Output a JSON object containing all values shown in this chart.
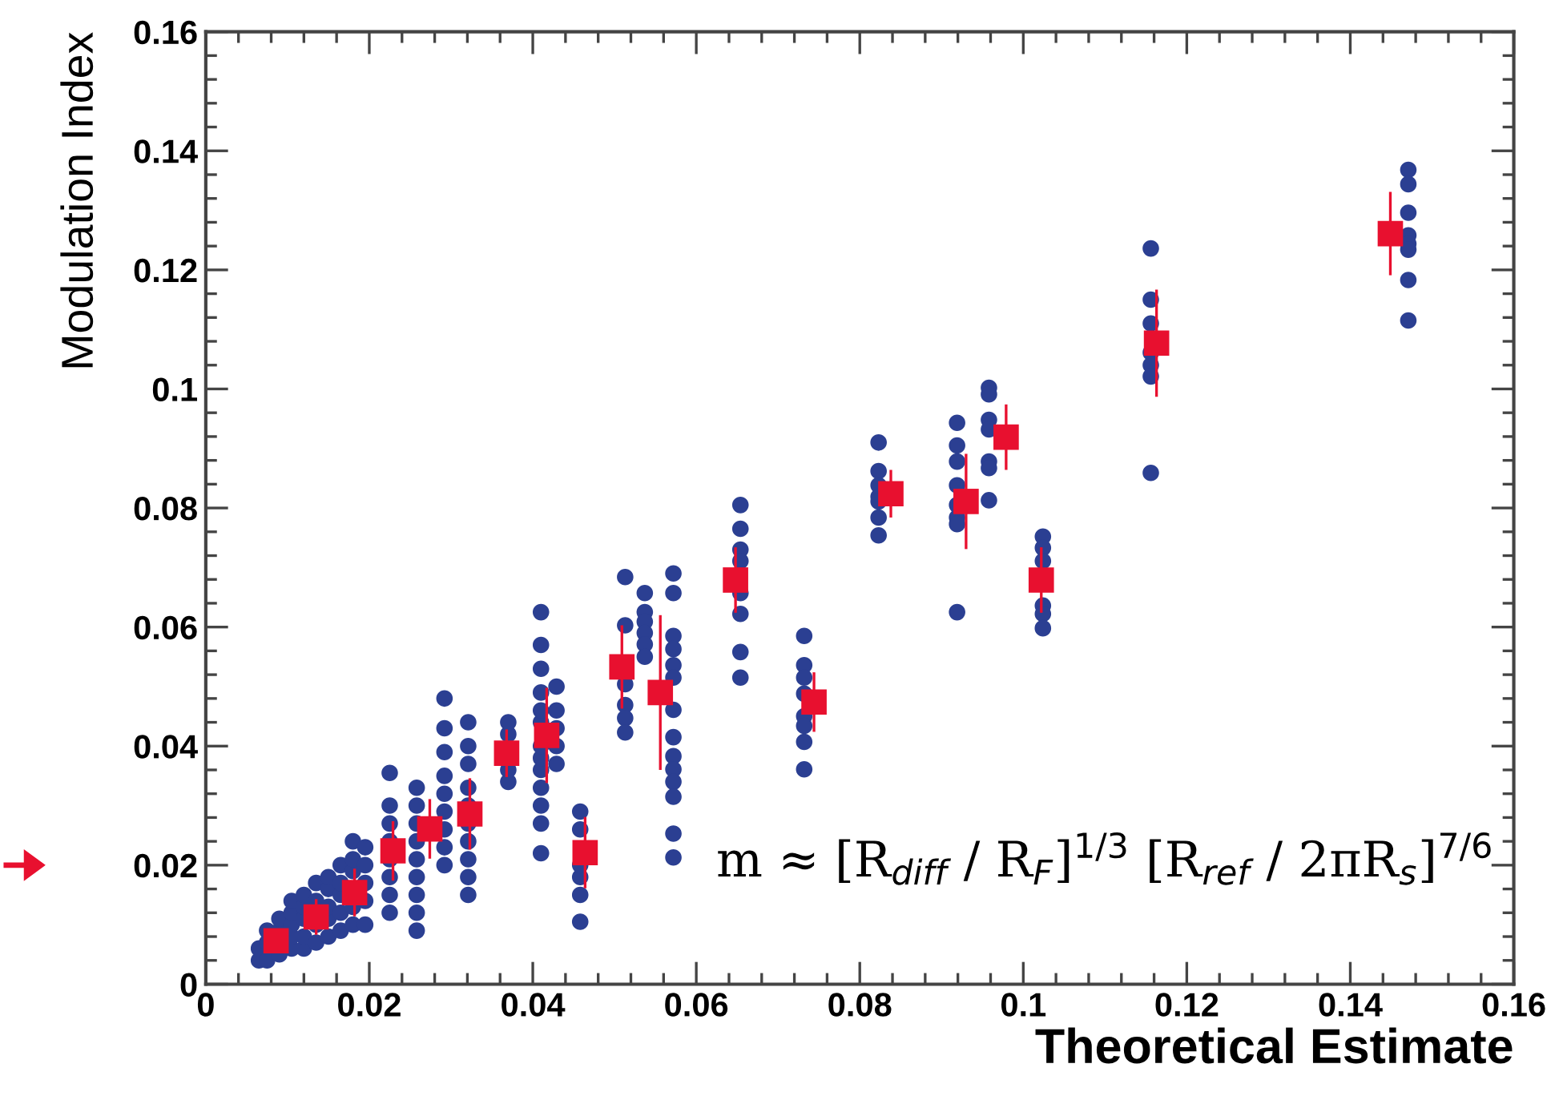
{
  "chart_data": {
    "type": "scatter",
    "xlabel": "Theoretical Estimate",
    "ylabel": "Modulation Index",
    "annotations": [
      "m ≈ [R$_{diff}$ / R$_{F}$]$^{1/3}$ [R$_{ref}$ / 2πR$_{s}$]$^{7/6}$"
    ],
    "xlim": [
      0,
      0.16
    ],
    "ylim": [
      0,
      0.16
    ],
    "xticks": [
      0,
      0.02,
      0.04,
      0.06,
      0.08,
      0.1,
      0.12,
      0.14,
      0.16
    ],
    "yticks": [
      0,
      0.02,
      0.04,
      0.06,
      0.08,
      0.1,
      0.12,
      0.14,
      0.16
    ],
    "grid": false,
    "series": [
      {
        "color": "#2b3f92",
        "marker": "circle",
        "x": [
          0.0065,
          0.0065,
          0.0075,
          0.0075,
          0.0075,
          0.009,
          0.009,
          0.009,
          0.0105,
          0.0105,
          0.0105,
          0.0105,
          0.0105,
          0.012,
          0.012,
          0.012,
          0.012,
          0.012,
          0.0135,
          0.0135,
          0.0135,
          0.0135,
          0.015,
          0.015,
          0.015,
          0.015,
          0.015,
          0.0165,
          0.0165,
          0.0165,
          0.0165,
          0.0165,
          0.018,
          0.018,
          0.018,
          0.018,
          0.018,
          0.0195,
          0.0195,
          0.0195,
          0.0195,
          0.0195,
          0.0225,
          0.0225,
          0.0225,
          0.0225,
          0.0225,
          0.0225,
          0.0225,
          0.0225,
          0.0258,
          0.0258,
          0.0258,
          0.0258,
          0.0258,
          0.0258,
          0.0258,
          0.0258,
          0.0258,
          0.0292,
          0.0292,
          0.0292,
          0.0292,
          0.0292,
          0.0292,
          0.0292,
          0.0292,
          0.0292,
          0.0321,
          0.0321,
          0.0321,
          0.0321,
          0.0321,
          0.0321,
          0.0321,
          0.0321,
          0.0321,
          0.0321,
          0.037,
          0.037,
          0.037,
          0.037,
          0.041,
          0.041,
          0.041,
          0.041,
          0.041,
          0.041,
          0.041,
          0.041,
          0.041,
          0.041,
          0.041,
          0.041,
          0.041,
          0.0429,
          0.0429,
          0.0429,
          0.0429,
          0.0429,
          0.0458,
          0.0458,
          0.0458,
          0.0458,
          0.0458,
          0.0458,
          0.0513,
          0.0513,
          0.0513,
          0.0513,
          0.0513,
          0.0513,
          0.0537,
          0.0537,
          0.0537,
          0.0537,
          0.0537,
          0.0537,
          0.0572,
          0.0572,
          0.0572,
          0.0572,
          0.0572,
          0.0572,
          0.0572,
          0.0572,
          0.0572,
          0.0572,
          0.0572,
          0.0572,
          0.0572,
          0.0572,
          0.0654,
          0.0654,
          0.0654,
          0.0654,
          0.0654,
          0.0654,
          0.0654,
          0.0654,
          0.0732,
          0.0732,
          0.0732,
          0.0732,
          0.0732,
          0.0732,
          0.0732,
          0.0732,
          0.0823,
          0.0823,
          0.0823,
          0.0823,
          0.0823,
          0.0823,
          0.0823,
          0.0919,
          0.0919,
          0.0919,
          0.0919,
          0.0919,
          0.0919,
          0.0919,
          0.0919,
          0.0958,
          0.0958,
          0.0958,
          0.0958,
          0.0958,
          0.0958,
          0.0958,
          0.1024,
          0.1024,
          0.1024,
          0.1024,
          0.1024,
          0.1024,
          0.1156,
          0.1156,
          0.1156,
          0.1156,
          0.1156,
          0.1156,
          0.1156,
          0.1471,
          0.1471,
          0.1471,
          0.1471,
          0.1471,
          0.1471,
          0.1471,
          0.1471
        ],
        "values": [
          0.004,
          0.006,
          0.004,
          0.007,
          0.009,
          0.005,
          0.009,
          0.011,
          0.006,
          0.008,
          0.01,
          0.012,
          0.014,
          0.006,
          0.008,
          0.011,
          0.013,
          0.015,
          0.007,
          0.01,
          0.014,
          0.017,
          0.008,
          0.011,
          0.013,
          0.016,
          0.018,
          0.009,
          0.012,
          0.015,
          0.017,
          0.02,
          0.01,
          0.013,
          0.019,
          0.021,
          0.024,
          0.01,
          0.014,
          0.017,
          0.02,
          0.023,
          0.012,
          0.015,
          0.018,
          0.021,
          0.024,
          0.027,
          0.03,
          0.0355,
          0.009,
          0.012,
          0.015,
          0.018,
          0.021,
          0.024,
          0.027,
          0.03,
          0.033,
          0.02,
          0.023,
          0.026,
          0.029,
          0.032,
          0.035,
          0.039,
          0.043,
          0.048,
          0.015,
          0.018,
          0.021,
          0.024,
          0.027,
          0.03,
          0.033,
          0.037,
          0.04,
          0.044,
          0.034,
          0.036,
          0.042,
          0.044,
          0.022,
          0.027,
          0.03,
          0.033,
          0.036,
          0.038,
          0.04,
          0.044,
          0.046,
          0.049,
          0.053,
          0.057,
          0.0625,
          0.037,
          0.04,
          0.043,
          0.046,
          0.05,
          0.0105,
          0.015,
          0.018,
          0.02,
          0.026,
          0.029,
          0.0684,
          0.0603,
          0.0504,
          0.0469,
          0.0447,
          0.0423,
          0.0657,
          0.0625,
          0.0609,
          0.059,
          0.0571,
          0.055,
          0.069,
          0.0657,
          0.0585,
          0.0563,
          0.0536,
          0.0515,
          0.0461,
          0.0415,
          0.0383,
          0.0361,
          0.034,
          0.0315,
          0.0253,
          0.0213,
          0.0805,
          0.0765,
          0.073,
          0.0711,
          0.0657,
          0.0622,
          0.0558,
          0.0515,
          0.0585,
          0.0536,
          0.0515,
          0.0488,
          0.045,
          0.0434,
          0.0407,
          0.0361,
          0.091,
          0.0862,
          0.0838,
          0.0819,
          0.0811,
          0.0784,
          0.0754,
          0.0943,
          0.0905,
          0.0878,
          0.0838,
          0.0805,
          0.0784,
          0.0773,
          0.0625,
          0.1002,
          0.0991,
          0.0948,
          0.0932,
          0.0878,
          0.0867,
          0.0813,
          0.0752,
          0.0733,
          0.0711,
          0.0636,
          0.0622,
          0.0598,
          0.1236,
          0.115,
          0.111,
          0.1061,
          0.104,
          0.1021,
          0.0859,
          0.1368,
          0.1344,
          0.1296,
          0.1258,
          0.1244,
          0.1234,
          0.1183,
          0.1115
        ]
      },
      {
        "color": "#e8102f",
        "marker": "square",
        "x": [
          0.0086,
          0.0135,
          0.0182,
          0.0229,
          0.0274,
          0.0323,
          0.0368,
          0.0417,
          0.0464,
          0.0509,
          0.0556,
          0.0648,
          0.0744,
          0.0838,
          0.093,
          0.0979,
          0.1022,
          0.1163,
          0.1449
        ],
        "values": [
          0.0073,
          0.0113,
          0.0154,
          0.0224,
          0.0261,
          0.0286,
          0.0388,
          0.0418,
          0.0221,
          0.0533,
          0.049,
          0.0679,
          0.0474,
          0.0824,
          0.0811,
          0.0919,
          0.0679,
          0.1077,
          0.1261
        ],
        "errors": [
          0.002,
          0.003,
          0.004,
          0.005,
          0.005,
          0.006,
          0.004,
          0.008,
          0.006,
          0.007,
          0.013,
          0.0055,
          0.005,
          0.004,
          0.008,
          0.0055,
          0.0055,
          0.009,
          0.007
        ]
      }
    ]
  }
}
